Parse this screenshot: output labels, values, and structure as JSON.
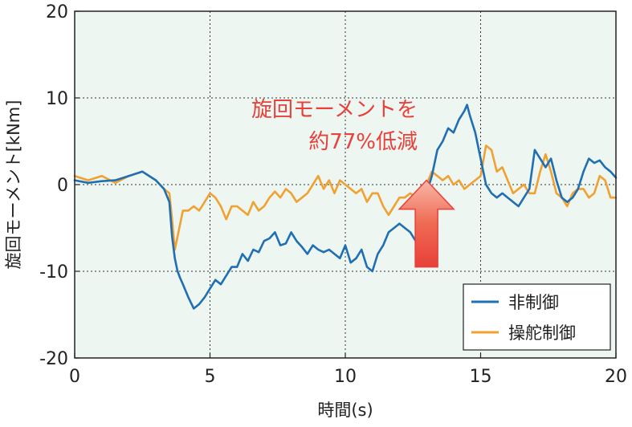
{
  "chart_data": {
    "type": "line",
    "title": "",
    "xlabel": "時間(s)",
    "ylabel": "旋回モーメント[kNm]",
    "xlim": [
      0,
      20
    ],
    "ylim": [
      -20,
      20
    ],
    "xticks": [
      0,
      5,
      10,
      15,
      20
    ],
    "yticks": [
      -20,
      -10,
      0,
      10,
      20
    ],
    "xtick_labels": [
      "0",
      "5",
      "10",
      "15",
      "20"
    ],
    "ytick_labels": [
      "-20",
      "-10",
      "0",
      "10",
      "20"
    ],
    "grid": true,
    "legend_position": "bottom-right",
    "annotation": {
      "lines": [
        "旋回モーメントを",
        "約77%低減"
      ],
      "arrow": "up",
      "arrow_x": 13.0,
      "arrow_y_range": [
        -9.5,
        0.5
      ],
      "color": "#e8403a"
    },
    "series": [
      {
        "name": "非制御",
        "color": "#1f6fb2",
        "x": [
          0,
          0.5,
          1,
          1.5,
          2,
          2.5,
          3,
          3.3,
          3.5,
          3.6,
          3.7,
          3.8,
          3.9,
          4.0,
          4.2,
          4.4,
          4.6,
          4.8,
          5.0,
          5.2,
          5.4,
          5.6,
          5.8,
          6.0,
          6.2,
          6.4,
          6.6,
          6.8,
          7.0,
          7.2,
          7.4,
          7.6,
          7.8,
          8.0,
          8.2,
          8.4,
          8.6,
          8.8,
          9.0,
          9.2,
          9.4,
          9.6,
          9.8,
          10.0,
          10.2,
          10.4,
          10.6,
          10.8,
          11.0,
          11.2,
          11.4,
          11.6,
          11.8,
          12.0,
          12.2,
          12.4,
          12.6,
          12.8,
          13.0,
          13.2,
          13.4,
          13.6,
          13.8,
          14.0,
          14.2,
          14.4,
          14.5,
          14.6,
          14.8,
          15.0,
          15.2,
          15.4,
          15.6,
          15.8,
          16.0,
          16.2,
          16.4,
          16.6,
          16.8,
          17.0,
          17.2,
          17.4,
          17.6,
          17.8,
          18.0,
          18.2,
          18.4,
          18.6,
          18.8,
          19.0,
          19.2,
          19.4,
          19.6,
          19.8,
          20.0
        ],
        "values": [
          0.5,
          0.2,
          0.4,
          0.5,
          1.0,
          1.5,
          0.5,
          -0.5,
          -2.0,
          -6.0,
          -8.5,
          -10.0,
          -10.8,
          -11.5,
          -13.0,
          -14.3,
          -13.8,
          -13.0,
          -12.0,
          -11.0,
          -11.5,
          -10.5,
          -9.5,
          -9.5,
          -8.0,
          -8.8,
          -7.5,
          -7.8,
          -6.5,
          -6.2,
          -5.5,
          -7.0,
          -6.8,
          -5.5,
          -6.5,
          -7.2,
          -8.0,
          -7.0,
          -7.5,
          -7.8,
          -7.5,
          -8.0,
          -8.5,
          -7.0,
          -9.0,
          -8.5,
          -7.5,
          -9.5,
          -10.0,
          -8.0,
          -7.0,
          -5.5,
          -5.0,
          -4.5,
          -5.0,
          -5.5,
          -6.5,
          -4.5,
          -1.0,
          1.0,
          4.0,
          5.0,
          6.5,
          6.0,
          7.5,
          8.5,
          9.2,
          8.0,
          6.0,
          3.0,
          0.0,
          -1.0,
          -1.5,
          -1.0,
          -1.5,
          -2.0,
          -2.5,
          -1.5,
          -0.5,
          4.0,
          3.0,
          2.0,
          3.0,
          0.5,
          -1.5,
          -2.0,
          -1.5,
          -0.5,
          1.5,
          3.0,
          2.5,
          2.8,
          2.0,
          1.5,
          0.8
        ]
      },
      {
        "name": "操舵制御",
        "color": "#f0a132",
        "x": [
          0,
          0.5,
          1,
          1.5,
          2,
          2.5,
          3,
          3.3,
          3.5,
          3.6,
          3.7,
          3.8,
          3.9,
          4.0,
          4.2,
          4.4,
          4.6,
          4.8,
          5.0,
          5.2,
          5.4,
          5.6,
          5.8,
          6.0,
          6.2,
          6.4,
          6.6,
          6.8,
          7.0,
          7.2,
          7.4,
          7.6,
          7.8,
          8.0,
          8.2,
          8.4,
          8.6,
          8.8,
          9.0,
          9.2,
          9.4,
          9.6,
          9.8,
          10.0,
          10.2,
          10.4,
          10.6,
          10.8,
          11.0,
          11.2,
          11.4,
          11.6,
          11.8,
          12.0,
          12.2,
          12.4,
          12.6,
          12.8,
          13.0,
          13.2,
          13.4,
          13.6,
          13.8,
          14.0,
          14.2,
          14.4,
          14.6,
          14.8,
          15.0,
          15.2,
          15.4,
          15.6,
          15.8,
          16.0,
          16.2,
          16.4,
          16.6,
          16.8,
          17.0,
          17.2,
          17.4,
          17.6,
          17.8,
          18.0,
          18.2,
          18.4,
          18.6,
          18.8,
          19.0,
          19.2,
          19.4,
          19.6,
          19.8,
          20.0
        ],
        "values": [
          1.0,
          0.5,
          1.0,
          0.2,
          1.0,
          1.5,
          0.5,
          -0.5,
          -1.0,
          -4.0,
          -7.5,
          -6.0,
          -4.5,
          -3.0,
          -3.0,
          -2.5,
          -3.0,
          -2.0,
          -1.0,
          -1.5,
          -2.5,
          -4.0,
          -2.5,
          -2.5,
          -3.0,
          -3.5,
          -2.0,
          -3.0,
          -2.5,
          -1.5,
          -0.8,
          -1.5,
          -0.5,
          -1.0,
          -2.0,
          -1.5,
          -1.0,
          0.0,
          1.0,
          -0.5,
          0.5,
          -1.0,
          0.5,
          0.0,
          -0.5,
          -1.0,
          -0.5,
          -2.0,
          -1.0,
          -1.0,
          -2.5,
          -3.5,
          -2.5,
          -1.5,
          -1.5,
          -1.0,
          -1.5,
          -1.0,
          0.0,
          1.5,
          1.0,
          0.5,
          1.0,
          0.0,
          0.5,
          -0.5,
          0.0,
          0.5,
          1.0,
          4.5,
          4.0,
          1.5,
          2.0,
          0.5,
          -1.0,
          -0.5,
          0.0,
          -1.0,
          -1.0,
          1.5,
          3.5,
          1.5,
          -1.0,
          -1.5,
          -2.5,
          -1.0,
          -0.5,
          -0.5,
          -1.5,
          -1.0,
          1.0,
          0.5,
          -1.5,
          -1.5
        ]
      }
    ]
  }
}
